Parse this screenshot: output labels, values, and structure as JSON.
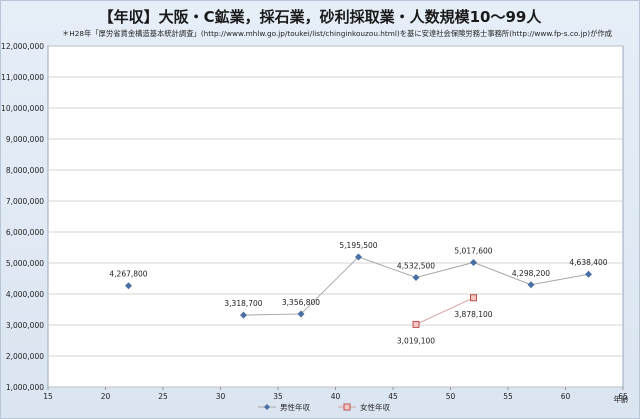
{
  "chart_data": {
    "type": "scatter",
    "title": "【年収】大阪・C鉱業，採石業，砂利採取業・人数規模10～99人",
    "note": "＊H28年「厚労省賃金構造基本統計調査」(http://www.mhlw.go.jp/toukei/list/chinginkouzou.html)を基に安達社会保険労務士事務所(http://www.fp-s.co.jp)が作成",
    "xlabel": "年齢",
    "ylabel": "",
    "xlim": [
      15,
      65
    ],
    "ylim": [
      1000000,
      12000000
    ],
    "x_ticks": [
      "15",
      "20",
      "25",
      "30",
      "35",
      "40",
      "45",
      "50",
      "55",
      "60",
      "65"
    ],
    "y_ticks": [
      "1,000,000",
      "2,000,000",
      "3,000,000",
      "4,000,000",
      "5,000,000",
      "6,000,000",
      "7,000,000",
      "8,000,000",
      "9,000,000",
      "10,000,000",
      "11,000,000",
      "12,000,000"
    ],
    "grid": "horizontal",
    "legend_position": "bottom",
    "series": [
      {
        "name": "男性年収",
        "color": "#4a6fa5",
        "marker": "diamond",
        "points": [
          {
            "x": 22,
            "y": 4267800,
            "label": "4,267,800"
          },
          {
            "x": 32,
            "y": 3318700,
            "label": "3,318,700"
          },
          {
            "x": 37,
            "y": 3356800,
            "label": "3,356,800"
          },
          {
            "x": 42,
            "y": 5195500,
            "label": "5,195,500"
          },
          {
            "x": 47,
            "y": 4532500,
            "label": "4,532,500"
          },
          {
            "x": 52,
            "y": 5017600,
            "label": "5,017,600"
          },
          {
            "x": 57,
            "y": 4298200,
            "label": "4,298,200"
          },
          {
            "x": 62,
            "y": 4638400,
            "label": "4,638,400"
          }
        ]
      },
      {
        "name": "女性年収",
        "color": "#c0504d",
        "marker": "square",
        "points": [
          {
            "x": 47,
            "y": 3019100,
            "label": "3,019,100"
          },
          {
            "x": 52,
            "y": 3878100,
            "label": "3,878,100"
          }
        ]
      }
    ]
  }
}
